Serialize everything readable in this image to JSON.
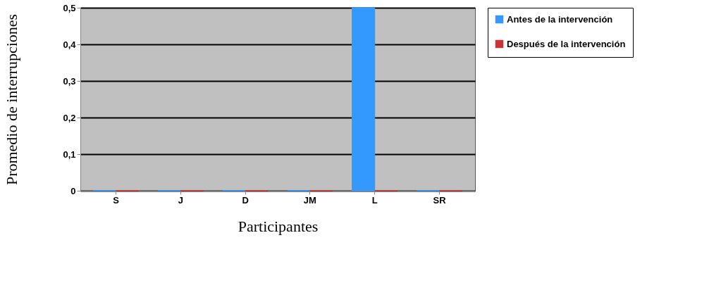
{
  "chart_data": {
    "type": "bar",
    "xlabel": "Participantes",
    "ylabel": "Promedio de interrupciones",
    "categories": [
      "S",
      "J",
      "D",
      "JM",
      "L",
      "SR"
    ],
    "series": [
      {
        "name": "Antes de la intervención",
        "color": "#3399ff",
        "values": [
          0,
          0,
          0,
          0,
          0.5,
          0
        ]
      },
      {
        "name": "Después de la intervención",
        "color": "#cc3333",
        "values": [
          0,
          0,
          0,
          0,
          0,
          0
        ]
      }
    ],
    "ylim": [
      0,
      0.5
    ],
    "yticks": [
      {
        "value": 0,
        "label": "0"
      },
      {
        "value": 0.1,
        "label": "0,1"
      },
      {
        "value": 0.2,
        "label": "0,2"
      },
      {
        "value": 0.3,
        "label": "0,3"
      },
      {
        "value": 0.4,
        "label": "0,4"
      },
      {
        "value": 0.5,
        "label": "0,5"
      }
    ],
    "grid": "y",
    "legend": "right"
  }
}
